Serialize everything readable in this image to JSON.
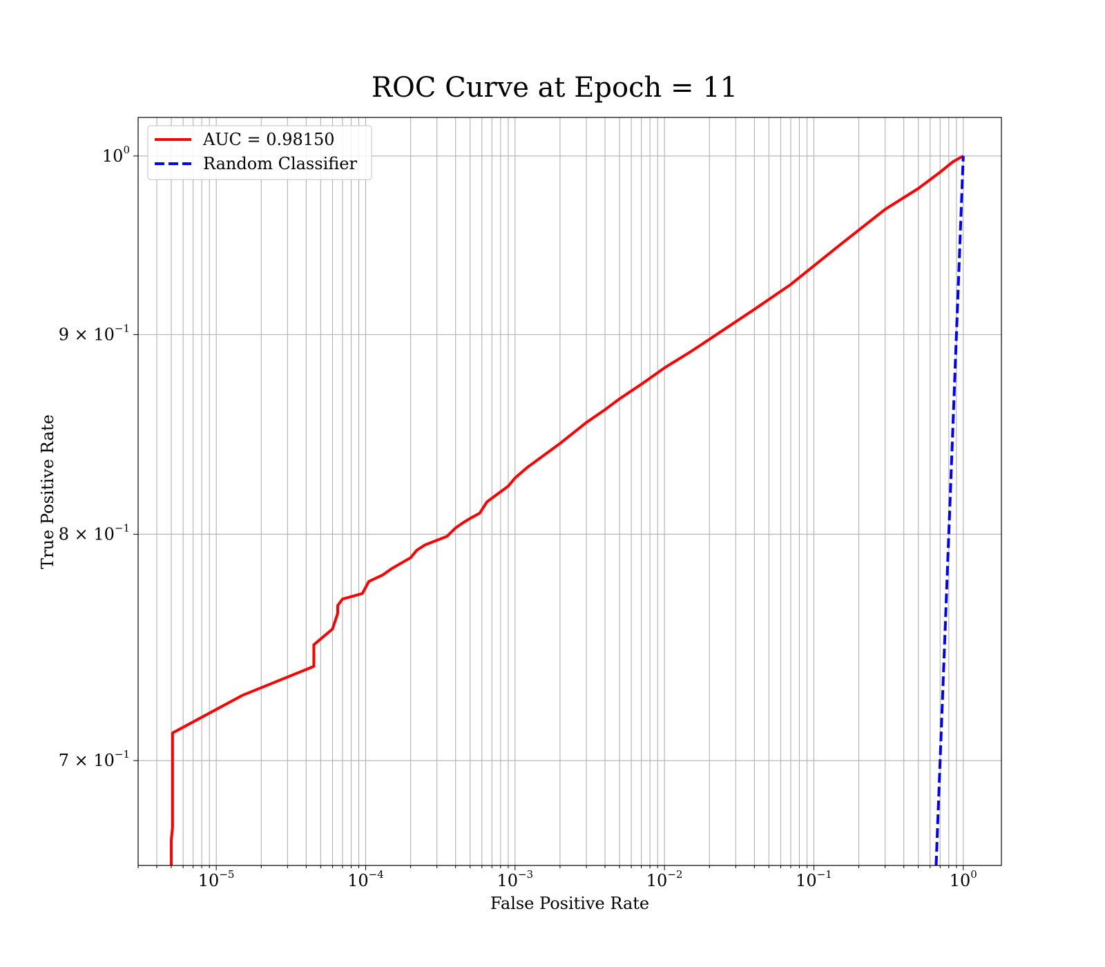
{
  "chart_data": {
    "type": "line",
    "title": "ROC Curve at Epoch = 11",
    "xlabel": "False Positive Rate",
    "ylabel": "True Positive Rate",
    "xscale": "log",
    "yscale": "log",
    "xlim": [
      3e-06,
      1.8
    ],
    "ylim": [
      0.658,
      1.023
    ],
    "grid": true,
    "grid_includes_minor": true,
    "legend_position": "upper-left",
    "x_ticks": [
      {
        "value": 1e-05,
        "base": "10",
        "exp": "−5"
      },
      {
        "value": 0.0001,
        "base": "10",
        "exp": "−4"
      },
      {
        "value": 0.001,
        "base": "10",
        "exp": "−3"
      },
      {
        "value": 0.01,
        "base": "10",
        "exp": "−2"
      },
      {
        "value": 0.1,
        "base": "10",
        "exp": "−1"
      },
      {
        "value": 1,
        "base": "10",
        "exp": "0"
      }
    ],
    "y_ticks": [
      {
        "value": 1.0,
        "base": "10",
        "exp": "0"
      },
      {
        "value": 0.9,
        "base": "9 × 10",
        "exp": "−1"
      },
      {
        "value": 0.8,
        "base": "8 × 10",
        "exp": "−1"
      },
      {
        "value": 0.7,
        "base": "7 × 10",
        "exp": "−1"
      }
    ],
    "series": [
      {
        "name": "AUC = 0.98150",
        "color": "#ff0000",
        "dash": "solid",
        "x": [
          5e-06,
          5e-06,
          5.1e-06,
          5.1e-06,
          1.5e-05,
          4.5e-05,
          4.5e-05,
          6e-05,
          6.5e-05,
          6.5e-05,
          7e-05,
          9.5e-05,
          0.000105,
          0.00013,
          0.00015,
          0.0002,
          0.00022,
          0.00025,
          0.00035,
          0.0004,
          0.00045,
          0.0005,
          0.00058,
          0.00065,
          0.0009,
          0.001,
          0.0012,
          0.002,
          0.003,
          0.004,
          0.005,
          0.007,
          0.01,
          0.015,
          0.02,
          0.04,
          0.07,
          0.15,
          0.3,
          0.5,
          0.7,
          0.85,
          1.0
        ],
        "y": [
          0.658,
          0.668,
          0.673,
          0.7115,
          0.7275,
          0.74,
          0.7495,
          0.7565,
          0.7635,
          0.767,
          0.77,
          0.7725,
          0.778,
          0.781,
          0.784,
          0.789,
          0.7925,
          0.795,
          0.799,
          0.803,
          0.8055,
          0.8075,
          0.81,
          0.8155,
          0.823,
          0.827,
          0.832,
          0.844,
          0.8545,
          0.861,
          0.8665,
          0.874,
          0.8825,
          0.891,
          0.8975,
          0.9135,
          0.927,
          0.949,
          0.969,
          0.981,
          0.9905,
          0.9965,
          1.0
        ]
      },
      {
        "name": "Random Classifier",
        "color": "#0000ff",
        "dash": "dashed",
        "x": [
          0.658,
          1.0
        ],
        "y": [
          0.658,
          1.0
        ]
      }
    ]
  }
}
